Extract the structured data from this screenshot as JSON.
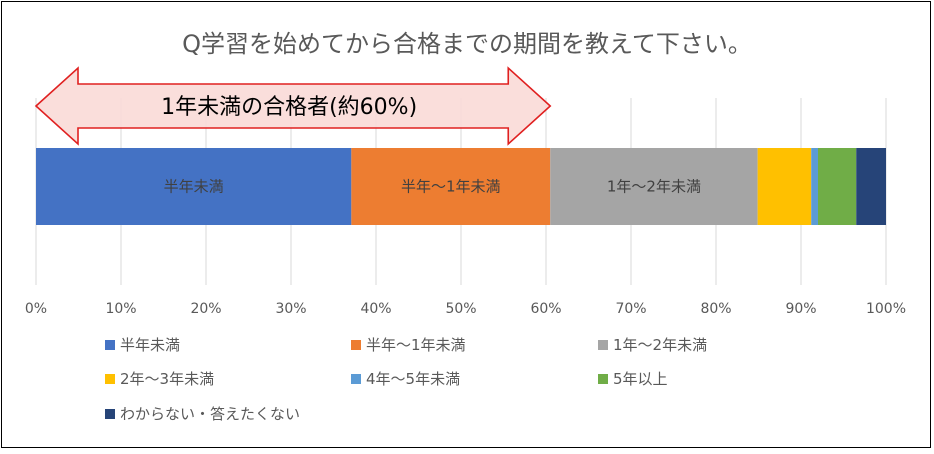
{
  "chart_data": {
    "type": "bar",
    "orientation": "horizontal",
    "stacked": true,
    "title": "Q学習を始めてから合格までの期間を教えて下さい。",
    "xlim": [
      0,
      100
    ],
    "grid": true,
    "legend_position": "bottom",
    "ticks": [
      "0%",
      "10%",
      "20%",
      "30%",
      "40%",
      "50%",
      "60%",
      "70%",
      "80%",
      "90%",
      "100%"
    ],
    "series": [
      {
        "name": "半年未満",
        "value": 37.1,
        "color": "#4472C4",
        "label": "半年未満"
      },
      {
        "name": "半年〜1年未満",
        "value": 23.4,
        "color": "#ED7D31",
        "label": "半年〜1年未満"
      },
      {
        "name": "1年〜2年未満",
        "value": 24.4,
        "color": "#A5A5A5",
        "label": "1年〜2年未満"
      },
      {
        "name": "2年〜3年未満",
        "value": 6.3,
        "color": "#FFC000",
        "label": ""
      },
      {
        "name": "4年〜5年未満",
        "value": 0.8,
        "color": "#5B9BD5",
        "label": ""
      },
      {
        "name": "5年以上",
        "value": 4.5,
        "color": "#70AD47",
        "label": ""
      },
      {
        "name": "わからない・答えたくない",
        "value": 3.5,
        "color": "#264478",
        "label": ""
      }
    ],
    "annotation": {
      "text": "1年未満の合格者(約60%)",
      "span": [
        0,
        60.5
      ],
      "fill": "#FADBD8",
      "stroke": "#E02020"
    }
  }
}
